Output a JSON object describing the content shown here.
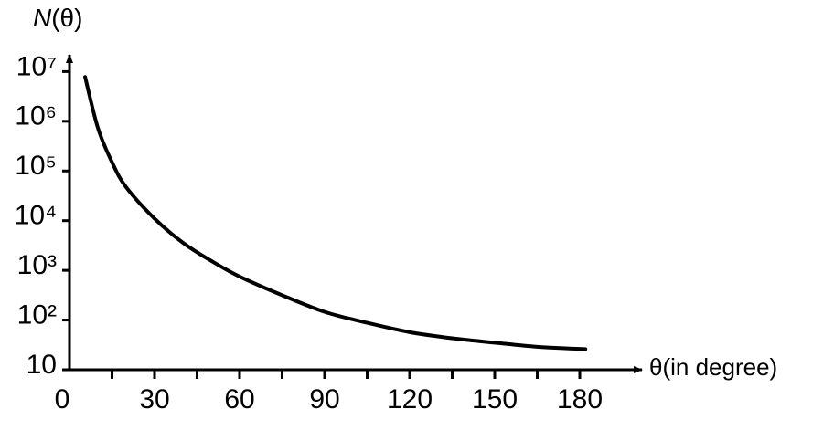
{
  "chart_data": {
    "type": "line",
    "ylabel": "N(θ)",
    "xlabel": "θ(in degree)",
    "yscale": "log",
    "xlim": [
      0,
      200
    ],
    "ylim": [
      10,
      20000000
    ],
    "xticks": [
      0,
      30,
      60,
      90,
      120,
      150,
      180
    ],
    "xminorticks": [
      15,
      45,
      75,
      105,
      135,
      165
    ],
    "yticks": [
      10,
      {
        "value": 100,
        "label": "10²"
      },
      {
        "value": 1000,
        "label": "10³"
      },
      {
        "value": 10000,
        "label": "10⁴"
      },
      {
        "value": 100000,
        "label": "10⁵"
      },
      {
        "value": 1000000,
        "label": "10⁶"
      },
      {
        "value": 10000000,
        "label": "10⁷"
      }
    ],
    "color": "#000000",
    "x": [
      5.5,
      10,
      15,
      20,
      30,
      40,
      50,
      60,
      75,
      90,
      105,
      120,
      135,
      150,
      165,
      182
    ],
    "values": [
      7800000,
      740000,
      150000,
      47000,
      11000,
      3600,
      1550,
      750,
      316,
      146,
      88,
      57,
      43,
      35,
      29,
      26
    ]
  }
}
